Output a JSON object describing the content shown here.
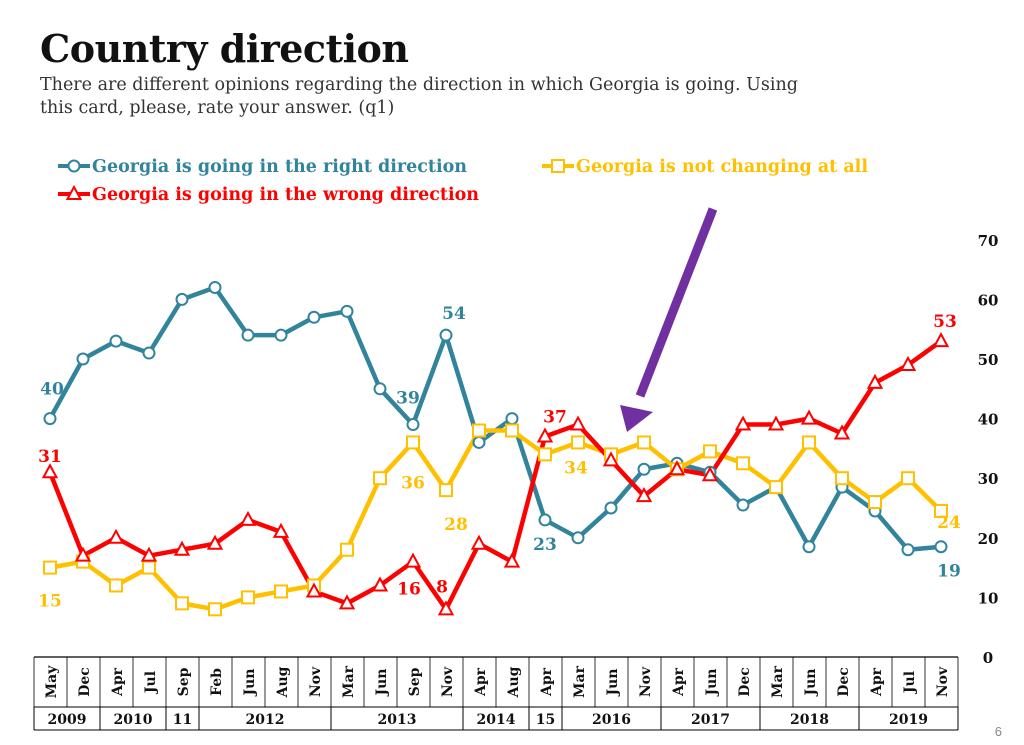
{
  "title": "Country direction",
  "subtitle": "There are different opinions regarding the direction in which Georgia is going. Using this card, please, rate your answer. (q1)",
  "page_number": "6",
  "chart_data": {
    "type": "line",
    "x": [
      "May",
      "Dec",
      "Apr",
      "Jul",
      "Sep",
      "Feb",
      "Jun",
      "Aug",
      "Nov",
      "Mar",
      "Jun",
      "Sep",
      "Nov",
      "Apr",
      "Aug",
      "Apr",
      "Mar",
      "Jun",
      "Nov",
      "Apr",
      "Jun",
      "Dec",
      "Mar",
      "Jun",
      "Dec",
      "Apr",
      "Jul",
      "Nov"
    ],
    "years": [
      {
        "label": "2009",
        "span": 2
      },
      {
        "label": "2010",
        "span": 2
      },
      {
        "label": "11",
        "span": 1
      },
      {
        "label": "2012",
        "span": 4
      },
      {
        "label": "2013",
        "span": 4
      },
      {
        "label": "2014",
        "span": 2
      },
      {
        "label": "15",
        "span": 1
      },
      {
        "label": "2016",
        "span": 3
      },
      {
        "label": "2017",
        "span": 3
      },
      {
        "label": "2018",
        "span": 3
      },
      {
        "label": "2019",
        "span": 3
      }
    ],
    "ylim": [
      0,
      70
    ],
    "yticks": [
      0,
      10,
      20,
      30,
      40,
      50,
      60,
      70
    ],
    "series": [
      {
        "name": "Georgia is going in the right direction",
        "color": "#31849b",
        "marker": "circle",
        "values": [
          40,
          50,
          53,
          51,
          60,
          62,
          54,
          54,
          57,
          58,
          45,
          39,
          54,
          36,
          40,
          23,
          20,
          25,
          31.5,
          32.5,
          31,
          25.5,
          28.5,
          18.5,
          28.5,
          24.5,
          18,
          18.5
        ]
      },
      {
        "name": "Georgia is not changing at all",
        "color": "#ffc000",
        "marker": "square",
        "values": [
          15,
          16,
          12,
          15,
          9,
          8,
          10,
          11,
          12,
          18,
          30,
          36,
          28,
          38,
          38,
          34,
          36,
          34,
          36,
          31.5,
          34.5,
          32.5,
          28.5,
          36,
          30,
          26,
          30,
          24.5
        ]
      },
      {
        "name": "Georgia is going in the wrong direction",
        "color": "#ff0000",
        "marker": "triangle",
        "values": [
          31,
          17,
          20,
          17,
          18,
          19,
          23,
          21,
          11,
          9,
          12,
          16,
          8,
          19,
          16,
          37,
          39,
          33,
          27,
          31.5,
          30.5,
          39,
          39,
          40,
          37.5,
          46,
          49,
          53
        ]
      }
    ],
    "data_labels": [
      {
        "series": 0,
        "index": 0,
        "text": "40"
      },
      {
        "series": 0,
        "index": 11,
        "text": "39"
      },
      {
        "series": 0,
        "index": 12,
        "text": "54"
      },
      {
        "series": 0,
        "index": 15,
        "text": "23"
      },
      {
        "series": 0,
        "index": 27,
        "text": "19"
      },
      {
        "series": 1,
        "index": 0,
        "text": "15"
      },
      {
        "series": 1,
        "index": 11,
        "text": "36"
      },
      {
        "series": 1,
        "index": 12,
        "text": "28"
      },
      {
        "series": 1,
        "index": 15,
        "text": "34"
      },
      {
        "series": 1,
        "index": 27,
        "text": "24"
      },
      {
        "series": 2,
        "index": 0,
        "text": "31"
      },
      {
        "series": 2,
        "index": 11,
        "text": "16"
      },
      {
        "series": 2,
        "index": 12,
        "text": "8"
      },
      {
        "series": 2,
        "index": 15,
        "text": "37"
      },
      {
        "series": 2,
        "index": 27,
        "text": "53"
      }
    ],
    "legend_placement": "top-left",
    "annotation_arrow_color": "#7030a0",
    "grid": false
  }
}
